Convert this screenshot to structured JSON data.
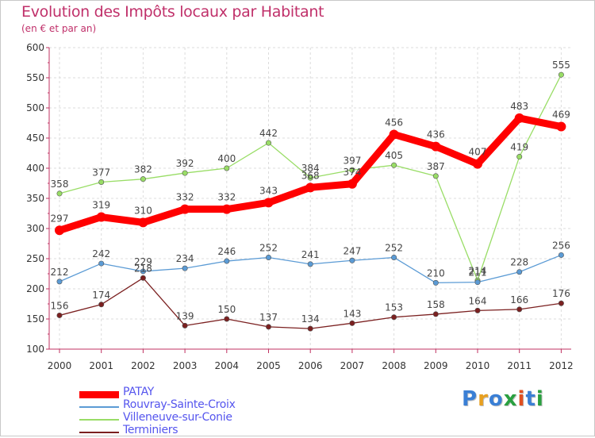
{
  "title": "Evolution des Impôts locaux par Habitant",
  "subtitle": "(en € et par an)",
  "chart_data": {
    "type": "line",
    "title": "Evolution des Impôts locaux par Habitant",
    "subtitle": "(en € et par an)",
    "xlabel": "",
    "ylabel": "",
    "ylim": [
      100,
      600
    ],
    "yticks": [
      100,
      150,
      200,
      250,
      300,
      350,
      400,
      450,
      500,
      550,
      600
    ],
    "categories": [
      "2000",
      "2001",
      "2002",
      "2003",
      "2004",
      "2005",
      "2006",
      "2007",
      "2008",
      "2009",
      "2010",
      "2011",
      "2012"
    ],
    "legend_position": "bottom-left",
    "series": [
      {
        "name": "PATAY",
        "color": "#ff0000",
        "values": [
          297,
          319,
          310,
          332,
          332,
          343,
          368,
          374,
          456,
          436,
          407,
          483,
          469
        ]
      },
      {
        "name": "Rouvray-Sainte-Croix",
        "color": "#5b9bd5",
        "values": [
          212,
          242,
          229,
          234,
          246,
          252,
          241,
          247,
          252,
          210,
          211,
          228,
          256
        ]
      },
      {
        "name": "Villeneuve-sur-Conie",
        "color": "#99dd66",
        "values": [
          358,
          377,
          382,
          392,
          400,
          442,
          384,
          397,
          405,
          387,
          214,
          419,
          555
        ]
      },
      {
        "name": "Terminiers",
        "color": "#7b2020",
        "values": [
          156,
          174,
          218,
          139,
          150,
          137,
          134,
          143,
          153,
          158,
          164,
          166,
          176
        ]
      }
    ]
  },
  "logo": {
    "letters": [
      "P",
      "r",
      "o",
      "x",
      "i",
      "t",
      "i"
    ],
    "colors": [
      "#3a7fd5",
      "#e8a020",
      "#3a7fd5",
      "#2aa040",
      "#e05020",
      "#3a7fd5",
      "#2aa040"
    ]
  }
}
